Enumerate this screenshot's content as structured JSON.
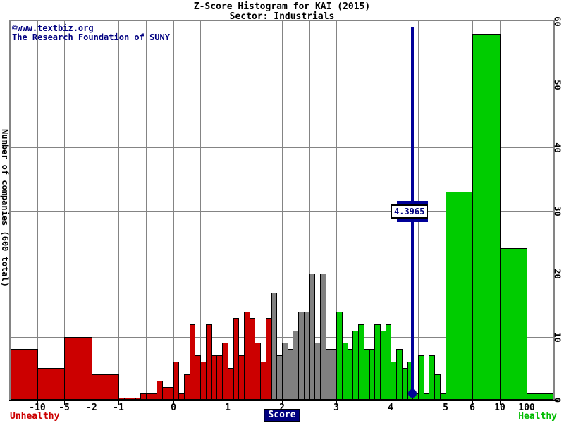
{
  "chart_data": {
    "type": "histogram",
    "title": "Z-Score Histogram for KAI (2015)",
    "subtitle": "Sector: Industrials",
    "watermark_line1": "©www.textbiz.org",
    "watermark_line2": "The Research Foundation of SUNY",
    "ylabel": "Number of companies (600 total)",
    "xlabel": "Score",
    "left_axis_label": "Unhealthy",
    "right_axis_label": "Healthy",
    "y_max": 60,
    "y_ticks": [
      0,
      10,
      20,
      30,
      40,
      50,
      60
    ],
    "x_tick_labels": [
      "-10",
      "-5",
      "-2",
      "-1",
      "0",
      "1",
      "2",
      "3",
      "4",
      "5",
      "6",
      "10",
      "100"
    ],
    "x_tick_slots": [
      1,
      2,
      3,
      4,
      6,
      8,
      10,
      12,
      14,
      16,
      17,
      18,
      19
    ],
    "grid_slots": 20,
    "wide_bars_left": [
      {
        "range": "below -10",
        "count": 8
      },
      {
        "range": "-10 to -5",
        "count": 5
      },
      {
        "range": "-5 to -2",
        "count": 10
      },
      {
        "range": "-2 to -1",
        "count": 4
      }
    ],
    "small_bins": {
      "start_score": -1.0,
      "bin_width": 0.1,
      "counts": [
        0,
        0,
        0,
        0,
        1,
        1,
        1,
        3,
        2,
        2,
        6,
        1,
        4,
        12,
        7,
        6,
        12,
        7,
        7,
        9,
        5,
        13,
        7,
        14,
        13,
        9,
        6,
        13,
        17,
        7,
        9,
        8,
        11,
        14,
        14,
        20,
        9,
        20,
        8,
        8,
        14,
        9,
        8,
        11,
        12,
        8,
        8,
        12,
        11,
        12,
        6,
        8,
        5,
        6,
        1,
        7,
        1,
        7,
        4,
        1
      ]
    },
    "wide_bars_right": [
      {
        "range": "5 to 6",
        "count": 33
      },
      {
        "range": "6 to 10",
        "count": 58
      },
      {
        "range": "10 to 100",
        "count": 24
      },
      {
        "range": "above 100",
        "count": 1
      }
    ],
    "zone_thresholds": {
      "distress_below": 1.8,
      "safe_above": 3.0
    },
    "marker": {
      "value": 4.3965,
      "label": "4.3965"
    },
    "colors": {
      "unhealthy": "#cc0000",
      "neutral": "#808080",
      "healthy": "#00cc00",
      "marker": "#000099",
      "text_accent": "#000080",
      "grid": "#848484",
      "axis": "#000000"
    }
  }
}
